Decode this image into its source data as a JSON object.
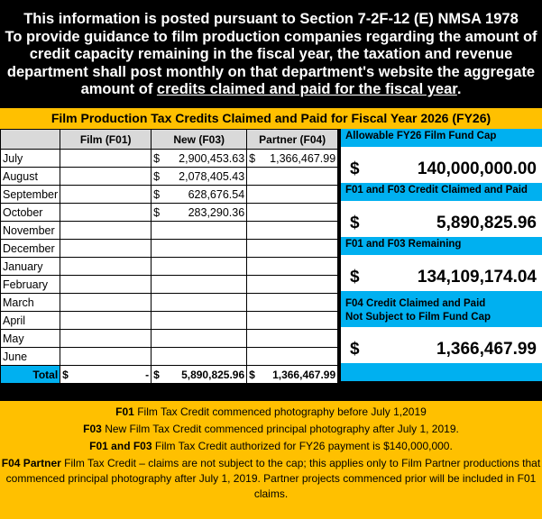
{
  "header": {
    "line1": "This information is posted pursuant to Section 7-2F-12 (E) NMSA 1978",
    "line2": "To provide guidance to film production companies regarding the amount of credit capacity remaining in the fiscal year, the taxation and revenue department shall post monthly on that department's website the aggregate amount of",
    "underlined": "credits claimed and paid for the fiscal year",
    "end": "."
  },
  "title": "Film Production Tax Credits Claimed and Paid for Fiscal Year 2026 (FY26)",
  "table": {
    "columns": [
      "",
      "Film (F01)",
      "New (F03)",
      "Partner (F04)"
    ],
    "rows": [
      {
        "month": "July",
        "f01": "",
        "f03": "2,900,453.63",
        "f04": "1,366,467.99"
      },
      {
        "month": "August",
        "f01": "",
        "f03": "2,078,405.43",
        "f04": ""
      },
      {
        "month": "September",
        "f01": "",
        "f03": "628,676.54",
        "f04": ""
      },
      {
        "month": "October",
        "f01": "",
        "f03": "283,290.36",
        "f04": ""
      },
      {
        "month": "November",
        "f01": "",
        "f03": "",
        "f04": ""
      },
      {
        "month": "December",
        "f01": "",
        "f03": "",
        "f04": ""
      },
      {
        "month": "January",
        "f01": "",
        "f03": "",
        "f04": ""
      },
      {
        "month": "February",
        "f01": "",
        "f03": "",
        "f04": ""
      },
      {
        "month": "March",
        "f01": "",
        "f03": "",
        "f04": ""
      },
      {
        "month": "April",
        "f01": "",
        "f03": "",
        "f04": ""
      },
      {
        "month": "May",
        "f01": "",
        "f03": "",
        "f04": ""
      },
      {
        "month": "June",
        "f01": "",
        "f03": "",
        "f04": ""
      }
    ],
    "total": {
      "label": "Total",
      "f01": "-",
      "f03": "5,890,825.96",
      "f04": "1,366,467.99"
    },
    "currency": "$"
  },
  "panel": {
    "cap_label": "Allowable FY26 Film Fund Cap",
    "cap": "140,000,000.00",
    "claimed_label": "F01 and F03 Credit Claimed and Paid",
    "claimed": "5,890,825.96",
    "remaining_label": "F01 and F03 Remaining",
    "remaining": "134,109,174.04",
    "f04_label1": "F04 Credit Claimed and Paid",
    "f04_label2": "Not Subject to Film Fund Cap",
    "f04": "1,366,467.99"
  },
  "footer": [
    {
      "b": "F01",
      "t": " Film Tax Credit commenced photography before July 1,2019"
    },
    {
      "b": "F03",
      "t": " New Film Tax Credit commenced principal photography after July 1, 2019."
    },
    {
      "b": "F01 and F03",
      "t": " Film Tax Credit authorized for FY26 payment is $140,000,000."
    },
    {
      "b": "F04 Partner",
      "t": " Film Tax Credit – claims are not subject to the cap; this applies only to Film Partner productions that commenced principal photography after July 1, 2019.  Partner projects commenced prior will be included in F01 claims."
    }
  ],
  "colors": {
    "yellow": "#FFC000",
    "cyan": "#00B0F0"
  }
}
